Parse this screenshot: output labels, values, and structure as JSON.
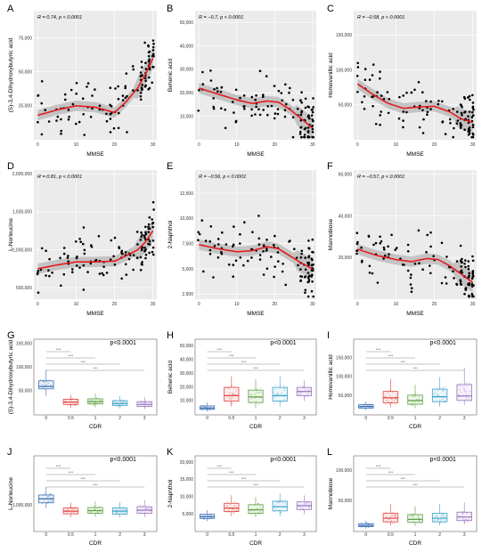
{
  "figure": {
    "chart_data": [
      {
        "panel": "A",
        "type": "scatter",
        "xlabel": "MMSE",
        "ylabel": "(S)-3,4-Dihydroxybutyric acid",
        "stat": "R = 0.74, p < 0.0001",
        "xlim": [
          -1,
          31
        ],
        "ylim": [
          0,
          95000
        ],
        "xticks": [
          0,
          10,
          20,
          30
        ],
        "yticks": [
          {
            "v": 25000,
            "label": "25,000"
          },
          {
            "v": 50000,
            "label": "50,000"
          },
          {
            "v": 75000,
            "label": "75,000"
          }
        ],
        "trend": [
          [
            0,
            18000
          ],
          [
            5,
            22000
          ],
          [
            10,
            25000
          ],
          [
            15,
            24000
          ],
          [
            20,
            20000
          ],
          [
            23,
            28000
          ],
          [
            26,
            38000
          ],
          [
            28,
            48000
          ],
          [
            30,
            60000
          ]
        ]
      },
      {
        "panel": "B",
        "type": "scatter",
        "xlabel": "MMSE",
        "ylabel": "Behenic acid",
        "stat": "R = −0.7, p < 0.0001",
        "xlim": [
          -1,
          31
        ],
        "ylim": [
          0,
          55000
        ],
        "xticks": [
          0,
          10,
          20,
          30
        ],
        "yticks": [
          {
            "v": 10000,
            "label": "10,000"
          },
          {
            "v": 20000,
            "label": "20,000"
          },
          {
            "v": 30000,
            "label": "30,000"
          },
          {
            "v": 40000,
            "label": "40,000"
          },
          {
            "v": 50000,
            "label": "50,000"
          }
        ],
        "trend": [
          [
            0,
            22000
          ],
          [
            5,
            19500
          ],
          [
            10,
            17000
          ],
          [
            14,
            15500
          ],
          [
            18,
            16500
          ],
          [
            21,
            16000
          ],
          [
            24,
            13000
          ],
          [
            27,
            9000
          ],
          [
            30,
            5000
          ]
        ]
      },
      {
        "panel": "C",
        "type": "scatter",
        "xlabel": "MMSE",
        "ylabel": "Homovanillic acid",
        "stat": "R = −0.58, p < 0.0001",
        "xlim": [
          -1,
          31
        ],
        "ylim": [
          0,
          185000
        ],
        "xticks": [
          0,
          10,
          20,
          30
        ],
        "yticks": [
          {
            "v": 50000,
            "label": "50,000"
          },
          {
            "v": 100000,
            "label": "100,000"
          },
          {
            "v": 150000,
            "label": "150,000"
          }
        ],
        "trend": [
          [
            0,
            80000
          ],
          [
            4,
            65000
          ],
          [
            8,
            52000
          ],
          [
            12,
            45000
          ],
          [
            16,
            47000
          ],
          [
            20,
            48000
          ],
          [
            24,
            40000
          ],
          [
            27,
            30000
          ],
          [
            30,
            25000
          ]
        ]
      },
      {
        "panel": "D",
        "type": "scatter",
        "xlabel": "MMSE",
        "ylabel": "L-Norleucine",
        "stat": "R = 0.81, p < 0.0001",
        "xlim": [
          -1,
          31
        ],
        "ylim": [
          350000,
          2050000
        ],
        "xticks": [
          0,
          10,
          20,
          30
        ],
        "yticks": [
          {
            "v": 500000,
            "label": "500,000"
          },
          {
            "v": 1000000,
            "label": "1,000,000"
          },
          {
            "v": 1500000,
            "label": "1,500,000"
          },
          {
            "v": 2000000,
            "label": "2,000,000"
          }
        ],
        "trend": [
          [
            0,
            750000
          ],
          [
            5,
            800000
          ],
          [
            10,
            840000
          ],
          [
            15,
            840000
          ],
          [
            20,
            850000
          ],
          [
            23,
            920000
          ],
          [
            26,
            1000000
          ],
          [
            28,
            1100000
          ],
          [
            30,
            1250000
          ]
        ]
      },
      {
        "panel": "E",
        "type": "scatter",
        "xlabel": "MMSE",
        "ylabel": "2-Naphthol",
        "stat": "R = −0.56, p < 0.0001",
        "xlim": [
          -1,
          31
        ],
        "ylim": [
          2000,
          14800
        ],
        "xticks": [
          0,
          10,
          20,
          30
        ],
        "yticks": [
          {
            "v": 2500,
            "label": "2,500"
          },
          {
            "v": 5000,
            "label": "5,000"
          },
          {
            "v": 7500,
            "label": "7,500"
          },
          {
            "v": 10000,
            "label": "10,000"
          },
          {
            "v": 12500,
            "label": "12,500"
          }
        ],
        "trend": [
          [
            0,
            7400
          ],
          [
            5,
            7000
          ],
          [
            10,
            6700
          ],
          [
            14,
            6800
          ],
          [
            18,
            7200
          ],
          [
            21,
            7000
          ],
          [
            24,
            6300
          ],
          [
            27,
            5600
          ],
          [
            30,
            5000
          ]
        ]
      },
      {
        "panel": "F",
        "type": "scatter",
        "xlabel": "MMSE",
        "ylabel": "Mannobiose",
        "stat": "R = −0.57, p < 0.0001",
        "xlim": [
          -1,
          31
        ],
        "ylim": [
          0,
          62000
        ],
        "xticks": [
          0,
          10,
          20,
          30
        ],
        "yticks": [
          {
            "v": 20000,
            "label": "20,000"
          },
          {
            "v": 40000,
            "label": "40,000"
          },
          {
            "v": 60000,
            "label": "60,000"
          }
        ],
        "trend": [
          [
            0,
            24000
          ],
          [
            5,
            21000
          ],
          [
            10,
            19000
          ],
          [
            14,
            18000
          ],
          [
            18,
            19500
          ],
          [
            21,
            19000
          ],
          [
            24,
            16000
          ],
          [
            27,
            12000
          ],
          [
            30,
            8000
          ]
        ]
      },
      {
        "panel": "G",
        "type": "box",
        "xlabel": "CDR",
        "ylabel": "(S)-3,4-Dihydroxybutyric acid",
        "pvalue": "p<0.0001",
        "categories": [
          "0",
          "0.5",
          "1",
          "2",
          "3"
        ],
        "colors": [
          "#3a6fb5",
          "#e0443e",
          "#5aa03c",
          "#39a0c8",
          "#9a6fc0"
        ],
        "ylim": [
          0,
          160000
        ],
        "yticks": [
          {
            "v": 50000,
            "label": "50,000"
          },
          {
            "v": 100000,
            "label": "100,000"
          },
          {
            "v": 150000,
            "label": "150,000"
          }
        ],
        "boxes": [
          {
            "lo": 40000,
            "q1": 55000,
            "med": 60000,
            "q3": 72000,
            "hi": 95000
          },
          {
            "lo": 15000,
            "q1": 22000,
            "med": 27000,
            "q3": 33000,
            "hi": 42000
          },
          {
            "lo": 16000,
            "q1": 23000,
            "med": 28000,
            "q3": 34000,
            "hi": 45000
          },
          {
            "lo": 14000,
            "q1": 20000,
            "med": 24000,
            "q3": 30000,
            "hi": 40000
          },
          {
            "lo": 12000,
            "q1": 18000,
            "med": 22000,
            "q3": 28000,
            "hi": 38000
          }
        ],
        "sig_labels": [
          "****",
          "****",
          "****",
          "****"
        ]
      },
      {
        "panel": "H",
        "type": "box",
        "xlabel": "CDR",
        "ylabel": "Behenic acid",
        "pvalue": "p<0.0001",
        "categories": [
          "0",
          "0.5",
          "1",
          "2",
          "3"
        ],
        "colors": [
          "#3a6fb5",
          "#e0443e",
          "#5aa03c",
          "#39a0c8",
          "#9a6fc0"
        ],
        "ylim": [
          0,
          55000
        ],
        "yticks": [
          {
            "v": 10000,
            "label": "10,000"
          },
          {
            "v": 20000,
            "label": "20,000"
          },
          {
            "v": 30000,
            "label": "30,000"
          },
          {
            "v": 40000,
            "label": "40,000"
          },
          {
            "v": 50000,
            "label": "50,000"
          }
        ],
        "boxes": [
          {
            "lo": 2500,
            "q1": 4000,
            "med": 5000,
            "q3": 6500,
            "hi": 9000
          },
          {
            "lo": 6000,
            "q1": 10000,
            "med": 14000,
            "q3": 20000,
            "hi": 28000
          },
          {
            "lo": 5000,
            "q1": 9000,
            "med": 13000,
            "q3": 18000,
            "hi": 26000
          },
          {
            "lo": 6000,
            "q1": 10000,
            "med": 14000,
            "q3": 20000,
            "hi": 28000
          },
          {
            "lo": 10000,
            "q1": 14000,
            "med": 17000,
            "q3": 20000,
            "hi": 25000
          }
        ],
        "sig_labels": [
          "****",
          "****",
          "****",
          "****"
        ]
      },
      {
        "panel": "I",
        "type": "box",
        "xlabel": "CDR",
        "ylabel": "Homovanillic acid",
        "pvalue": "p<0.0001",
        "categories": [
          "0",
          "0.5",
          "1",
          "2",
          "3"
        ],
        "colors": [
          "#3a6fb5",
          "#e0443e",
          "#5aa03c",
          "#39a0c8",
          "#9a6fc0"
        ],
        "ylim": [
          0,
          200000
        ],
        "yticks": [
          {
            "v": 50000,
            "label": "50,000"
          },
          {
            "v": 100000,
            "label": "100,000"
          },
          {
            "v": 150000,
            "label": "150,000"
          }
        ],
        "boxes": [
          {
            "lo": 12000,
            "q1": 18000,
            "med": 22000,
            "q3": 27000,
            "hi": 35000
          },
          {
            "lo": 20000,
            "q1": 32000,
            "med": 45000,
            "q3": 62000,
            "hi": 95000
          },
          {
            "lo": 18000,
            "q1": 28000,
            "med": 38000,
            "q3": 52000,
            "hi": 80000
          },
          {
            "lo": 22000,
            "q1": 35000,
            "med": 48000,
            "q3": 68000,
            "hi": 100000
          },
          {
            "lo": 25000,
            "q1": 38000,
            "med": 50000,
            "q3": 80000,
            "hi": 125000
          }
        ],
        "sig_labels": [
          "****",
          "****",
          "****",
          "****"
        ]
      },
      {
        "panel": "J",
        "type": "box",
        "xlabel": "CDR",
        "ylabel": "L-Norleucine",
        "pvalue": "p<0.0001",
        "categories": [
          "0",
          "0.5",
          "1",
          "2",
          "3"
        ],
        "colors": [
          "#3a6fb5",
          "#e0443e",
          "#5aa03c",
          "#39a0c8",
          "#9a6fc0"
        ],
        "ylim": [
          0,
          2900000
        ],
        "yticks": [
          {
            "v": 1000000,
            "label": "1,000,000"
          }
        ],
        "boxes": [
          {
            "lo": 900000,
            "q1": 1100000,
            "med": 1250000,
            "q3": 1400000,
            "hi": 1700000
          },
          {
            "lo": 550000,
            "q1": 680000,
            "med": 780000,
            "q3": 900000,
            "hi": 1100000
          },
          {
            "lo": 560000,
            "q1": 700000,
            "med": 800000,
            "q3": 920000,
            "hi": 1150000
          },
          {
            "lo": 530000,
            "q1": 670000,
            "med": 780000,
            "q3": 900000,
            "hi": 1120000
          },
          {
            "lo": 550000,
            "q1": 700000,
            "med": 820000,
            "q3": 950000,
            "hi": 1200000
          }
        ],
        "sig_labels": [
          "****",
          "****",
          "****",
          "****"
        ]
      },
      {
        "panel": "K",
        "type": "box",
        "xlabel": "CDR",
        "ylabel": "2-Naphthol",
        "pvalue": "p<0.0001",
        "categories": [
          "0",
          "0.5",
          "1",
          "2",
          "3"
        ],
        "colors": [
          "#3a6fb5",
          "#e0443e",
          "#5aa03c",
          "#39a0c8",
          "#9a6fc0"
        ],
        "ylim": [
          0,
          22000
        ],
        "yticks": [
          {
            "v": 5000,
            "label": "5,000"
          },
          {
            "v": 10000,
            "label": "10,000"
          },
          {
            "v": 15000,
            "label": "15,000"
          },
          {
            "v": 20000,
            "label": "20,000"
          }
        ],
        "boxes": [
          {
            "lo": 3000,
            "q1": 3800,
            "med": 4300,
            "q3": 5000,
            "hi": 6200
          },
          {
            "lo": 4500,
            "q1": 5800,
            "med": 6800,
            "q3": 8200,
            "hi": 10500
          },
          {
            "lo": 4200,
            "q1": 5300,
            "med": 6300,
            "q3": 7800,
            "hi": 10000
          },
          {
            "lo": 4500,
            "q1": 6000,
            "med": 7200,
            "q3": 8800,
            "hi": 11000
          },
          {
            "lo": 5000,
            "q1": 6400,
            "med": 7500,
            "q3": 8600,
            "hi": 10500
          }
        ],
        "sig_labels": [
          "****",
          "****",
          "****",
          "****"
        ]
      },
      {
        "panel": "L",
        "type": "box",
        "xlabel": "CDR",
        "ylabel": "Mannobiose",
        "pvalue": "p<0.0001",
        "categories": [
          "0",
          "0.5",
          "1",
          "2",
          "3"
        ],
        "colors": [
          "#3a6fb5",
          "#e0443e",
          "#5aa03c",
          "#39a0c8",
          "#9a6fc0"
        ],
        "ylim": [
          0,
          125000
        ],
        "yticks": [
          {
            "v": 50000,
            "label": "50,000"
          },
          {
            "v": 100000,
            "label": "100,000"
          }
        ],
        "boxes": [
          {
            "lo": 5000,
            "q1": 8000,
            "med": 10000,
            "q3": 13000,
            "hi": 18000
          },
          {
            "lo": 10000,
            "q1": 16000,
            "med": 22000,
            "q3": 30000,
            "hi": 45000
          },
          {
            "lo": 9000,
            "q1": 15000,
            "med": 20000,
            "q3": 28000,
            "hi": 42000
          },
          {
            "lo": 10000,
            "q1": 16000,
            "med": 22000,
            "q3": 30000,
            "hi": 45000
          },
          {
            "lo": 12000,
            "q1": 18000,
            "med": 24000,
            "q3": 32000,
            "hi": 48000
          }
        ],
        "sig_labels": [
          "****",
          "****",
          "****",
          "****"
        ]
      }
    ]
  }
}
